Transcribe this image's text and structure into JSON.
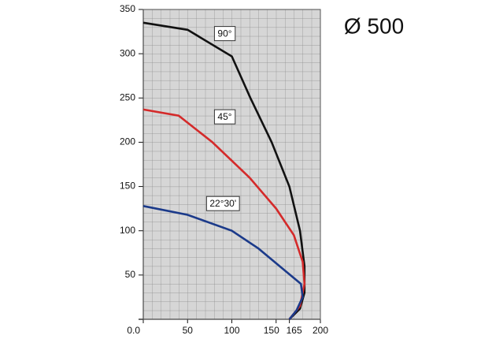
{
  "chart_data": {
    "type": "line",
    "title": "Ø 500",
    "annotations": [
      "90°",
      "45°",
      "22°30'"
    ],
    "xlim": [
      0,
      200
    ],
    "ylim": [
      0,
      350
    ],
    "xticks": [
      {
        "value": 0,
        "label": "0.0"
      },
      50,
      100,
      150,
      165,
      200
    ],
    "yticks": [
      50,
      100,
      150,
      200,
      250,
      300,
      350
    ],
    "grid": true,
    "series": [
      {
        "name": "90°",
        "color": "#111111",
        "x": [
          0,
          50,
          100,
          121,
          145,
          165,
          177,
          182,
          182,
          177,
          165
        ],
        "values": [
          335,
          327,
          297,
          250,
          200,
          150,
          100,
          60,
          30,
          12,
          0
        ]
      },
      {
        "name": "45°",
        "color": "#d42a2a",
        "x": [
          0,
          40,
          78,
          120,
          150,
          170,
          180,
          182,
          177,
          165
        ],
        "values": [
          237,
          230,
          200,
          160,
          125,
          95,
          65,
          40,
          15,
          0
        ]
      },
      {
        "name": "22°30'",
        "color": "#1b3a8a",
        "x": [
          0,
          50,
          100,
          130,
          160,
          178,
          180,
          173,
          165
        ],
        "values": [
          128,
          118,
          100,
          80,
          55,
          40,
          25,
          10,
          0
        ]
      }
    ]
  }
}
